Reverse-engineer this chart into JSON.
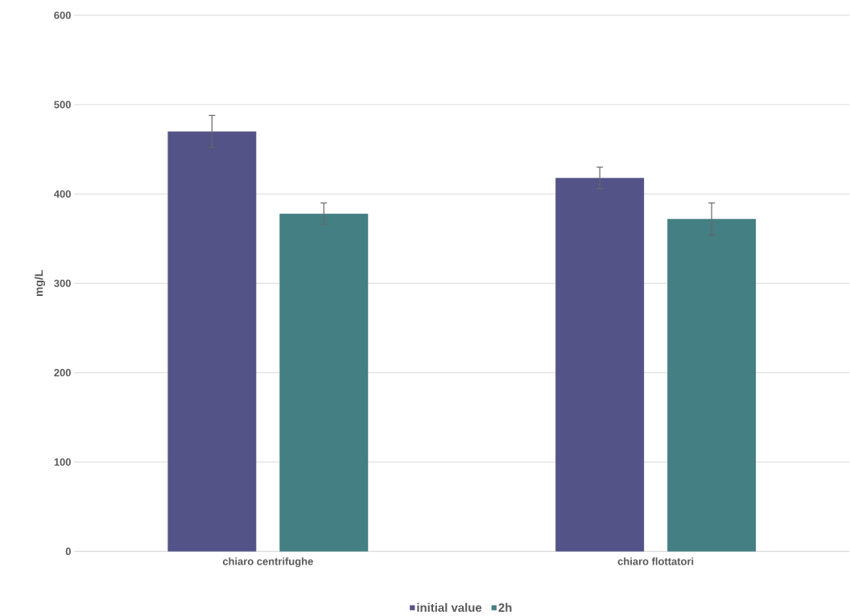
{
  "chart_data": {
    "type": "bar",
    "ylabel": "mg/L",
    "categories": [
      "chiaro centrifughe",
      "chiaro flottatori"
    ],
    "series": [
      {
        "name": "initial value",
        "color": "#545388",
        "values": [
          470,
          418
        ],
        "errors": [
          18,
          12
        ]
      },
      {
        "name": "2h",
        "color": "#447f84",
        "values": [
          378,
          372
        ],
        "errors": [
          12,
          18
        ]
      }
    ],
    "ylim": [
      0,
      600
    ],
    "yticks": [
      0,
      100,
      200,
      300,
      400,
      500,
      600
    ],
    "grid": "y",
    "legend": "bottom"
  }
}
